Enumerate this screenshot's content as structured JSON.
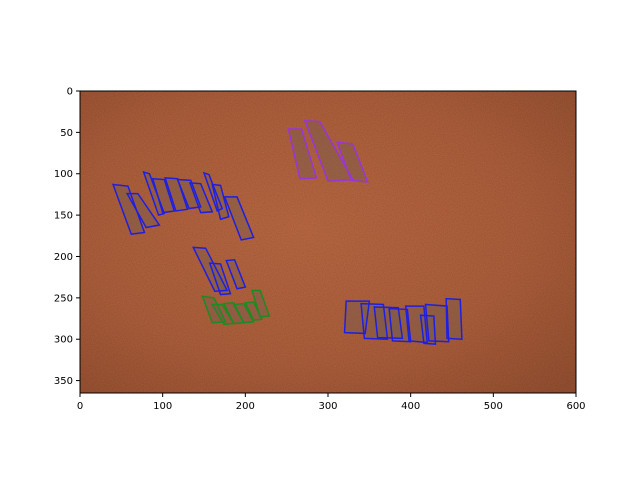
{
  "axes": {
    "x_ticks": [
      0,
      100,
      200,
      300,
      400,
      500,
      600
    ],
    "y_ticks": [
      0,
      50,
      100,
      150,
      200,
      250,
      300,
      350
    ],
    "xlim": [
      0,
      600
    ],
    "ylim_inverted": [
      0,
      365
    ],
    "y_axis_inverted": true
  },
  "image": {
    "description_color": "#b5643f",
    "texture": "leather"
  },
  "annotations": {
    "box_colors": {
      "blue": "#1f1fe0",
      "purple": "#9a35d6",
      "green": "#1f8a1f"
    },
    "groups": [
      {
        "color": "blue",
        "polys": [
          [
            [
              40,
              113
            ],
            [
              58,
              115
            ],
            [
              78,
              171
            ],
            [
              62,
              173
            ]
          ],
          [
            [
              57,
              124
            ],
            [
              70,
              124
            ],
            [
              96,
              162
            ],
            [
              80,
              165
            ]
          ],
          [
            [
              77,
              98
            ],
            [
              84,
              100
            ],
            [
              102,
              148
            ],
            [
              95,
              150
            ]
          ],
          [
            [
              88,
              106
            ],
            [
              102,
              107
            ],
            [
              114,
              145
            ],
            [
              100,
              147
            ]
          ],
          [
            [
              103,
              105
            ],
            [
              118,
              106
            ],
            [
              130,
              143
            ],
            [
              116,
              145
            ]
          ],
          [
            [
              118,
              107
            ],
            [
              134,
              108
            ],
            [
              146,
              140
            ],
            [
              132,
              142
            ]
          ],
          [
            [
              133,
              111
            ],
            [
              146,
              112
            ],
            [
              160,
              146
            ],
            [
              146,
              147
            ]
          ],
          [
            [
              150,
              99
            ],
            [
              156,
              101
            ],
            [
              172,
              142
            ],
            [
              166,
              145
            ]
          ],
          [
            [
              160,
              113
            ],
            [
              170,
              114
            ],
            [
              180,
              152
            ],
            [
              170,
              155
            ]
          ],
          [
            [
              175,
              128
            ],
            [
              190,
              128
            ],
            [
              210,
              177
            ],
            [
              195,
              180
            ]
          ]
        ]
      },
      {
        "color": "blue",
        "polys": [
          [
            [
              137,
              189
            ],
            [
              152,
              190
            ],
            [
              178,
              241
            ],
            [
              163,
              242
            ]
          ],
          [
            [
              157,
              208
            ],
            [
              170,
              209
            ],
            [
              182,
              245
            ],
            [
              170,
              246
            ]
          ],
          [
            [
              177,
              205
            ],
            [
              187,
              204
            ],
            [
              200,
              237
            ],
            [
              190,
              239
            ]
          ]
        ]
      },
      {
        "color": "green",
        "polys": [
          [
            [
              148,
              248
            ],
            [
              162,
              250
            ],
            [
              176,
              279
            ],
            [
              160,
              280
            ]
          ],
          [
            [
              160,
              258
            ],
            [
              172,
              258
            ],
            [
              186,
              281
            ],
            [
              174,
              282
            ]
          ],
          [
            [
              174,
              257
            ],
            [
              186,
              256
            ],
            [
              198,
              280
            ],
            [
              186,
              281
            ]
          ],
          [
            [
              186,
              258
            ],
            [
              198,
              257
            ],
            [
              210,
              279
            ],
            [
              198,
              280
            ]
          ],
          [
            [
              200,
              256
            ],
            [
              210,
              255
            ],
            [
              220,
              276
            ],
            [
              210,
              277
            ]
          ],
          [
            [
              208,
              241
            ],
            [
              218,
              241
            ],
            [
              229,
              272
            ],
            [
              218,
              273
            ]
          ]
        ]
      },
      {
        "color": "purple",
        "polys": [
          [
            [
              252,
              46
            ],
            [
              268,
              46
            ],
            [
              286,
              105
            ],
            [
              266,
              106
            ]
          ],
          [
            [
              272,
              36
            ],
            [
              290,
              37
            ],
            [
              330,
              107
            ],
            [
              300,
              109
            ]
          ],
          [
            [
              311,
              62
            ],
            [
              330,
              64
            ],
            [
              348,
              110
            ],
            [
              328,
              108
            ]
          ]
        ]
      },
      {
        "color": "blue",
        "polys": [
          [
            [
              320,
              292
            ],
            [
              345,
              293
            ],
            [
              350,
              254
            ],
            [
              322,
              254
            ]
          ],
          [
            [
              344,
              299
            ],
            [
              372,
              300
            ],
            [
              367,
              258
            ],
            [
              340,
              257
            ]
          ],
          [
            [
              360,
              298
            ],
            [
              390,
              299
            ],
            [
              385,
              262
            ],
            [
              356,
              261
            ]
          ],
          [
            [
              378,
              302
            ],
            [
              400,
              303
            ],
            [
              396,
              264
            ],
            [
              374,
              263
            ]
          ],
          [
            [
              398,
              302
            ],
            [
              420,
              304
            ],
            [
              416,
              260
            ],
            [
              394,
              260
            ]
          ],
          [
            [
              416,
              305
            ],
            [
              430,
              306
            ],
            [
              428,
              272
            ],
            [
              412,
              271
            ]
          ],
          [
            [
              422,
              302
            ],
            [
              446,
              303
            ],
            [
              444,
              260
            ],
            [
              418,
              258
            ]
          ],
          [
            [
              444,
              299
            ],
            [
              462,
              300
            ],
            [
              460,
              252
            ],
            [
              443,
              251
            ]
          ]
        ]
      }
    ]
  }
}
